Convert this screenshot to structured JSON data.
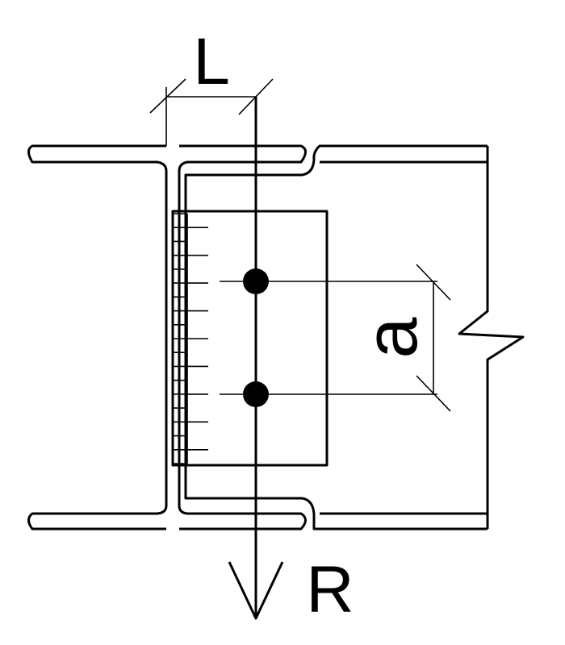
{
  "labels": {
    "length": "L",
    "spacing": "a",
    "reaction": "R"
  },
  "colors": {
    "stroke": "#000000",
    "background": "#ffffff"
  }
}
